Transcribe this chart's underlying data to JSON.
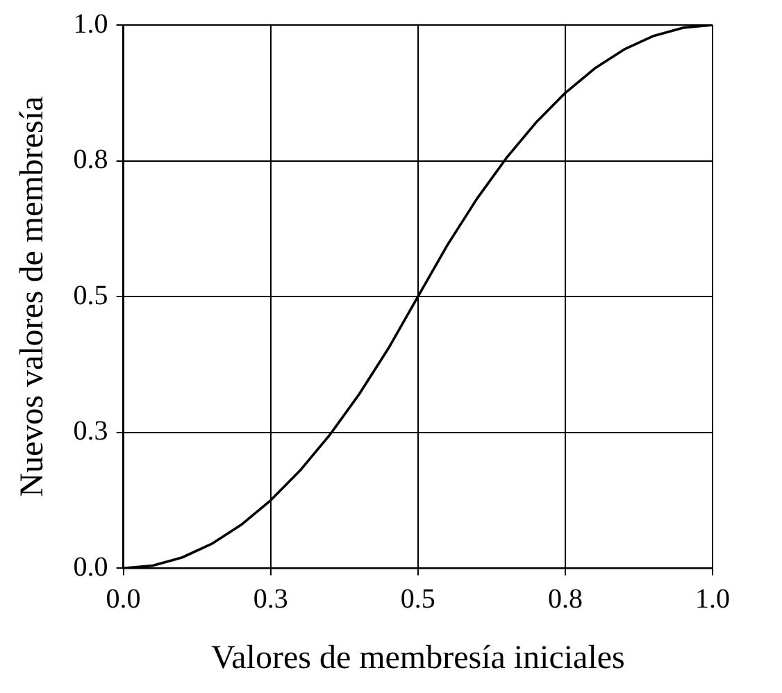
{
  "chart_data": {
    "type": "line",
    "xlabel": "Valores de membresía iniciales",
    "ylabel": "Nuevos valores de membresía",
    "x": [
      0,
      0.05,
      0.1,
      0.15,
      0.2,
      0.25,
      0.3,
      0.35,
      0.4,
      0.45,
      0.5,
      0.55,
      0.6,
      0.65,
      0.7,
      0.75,
      0.8,
      0.85,
      0.9,
      0.95,
      1
    ],
    "series": [
      {
        "color": "#000000",
        "values": [
          0,
          0.005,
          0.02,
          0.045,
          0.08,
          0.125,
          0.18,
          0.245,
          0.32,
          0.405,
          0.5,
          0.595,
          0.68,
          0.755,
          0.82,
          0.875,
          0.92,
          0.955,
          0.98,
          0.995,
          1
        ]
      }
    ],
    "xlim": [
      0,
      1
    ],
    "ylim": [
      0,
      1
    ],
    "xticks": [
      {
        "value": 0,
        "label": "0.0"
      },
      {
        "value": 0.25,
        "label": "0.3"
      },
      {
        "value": 0.5,
        "label": "0.5"
      },
      {
        "value": 0.75,
        "label": "0.8"
      },
      {
        "value": 1,
        "label": "1.0"
      }
    ],
    "yticks": [
      {
        "value": 0,
        "label": "0.0"
      },
      {
        "value": 0.25,
        "label": "0.3"
      },
      {
        "value": 0.5,
        "label": "0.5"
      },
      {
        "value": 0.75,
        "label": "0.8"
      },
      {
        "value": 1,
        "label": "1.0"
      }
    ],
    "grid": true,
    "legend": false,
    "marker": "none",
    "line_style": "solid"
  }
}
